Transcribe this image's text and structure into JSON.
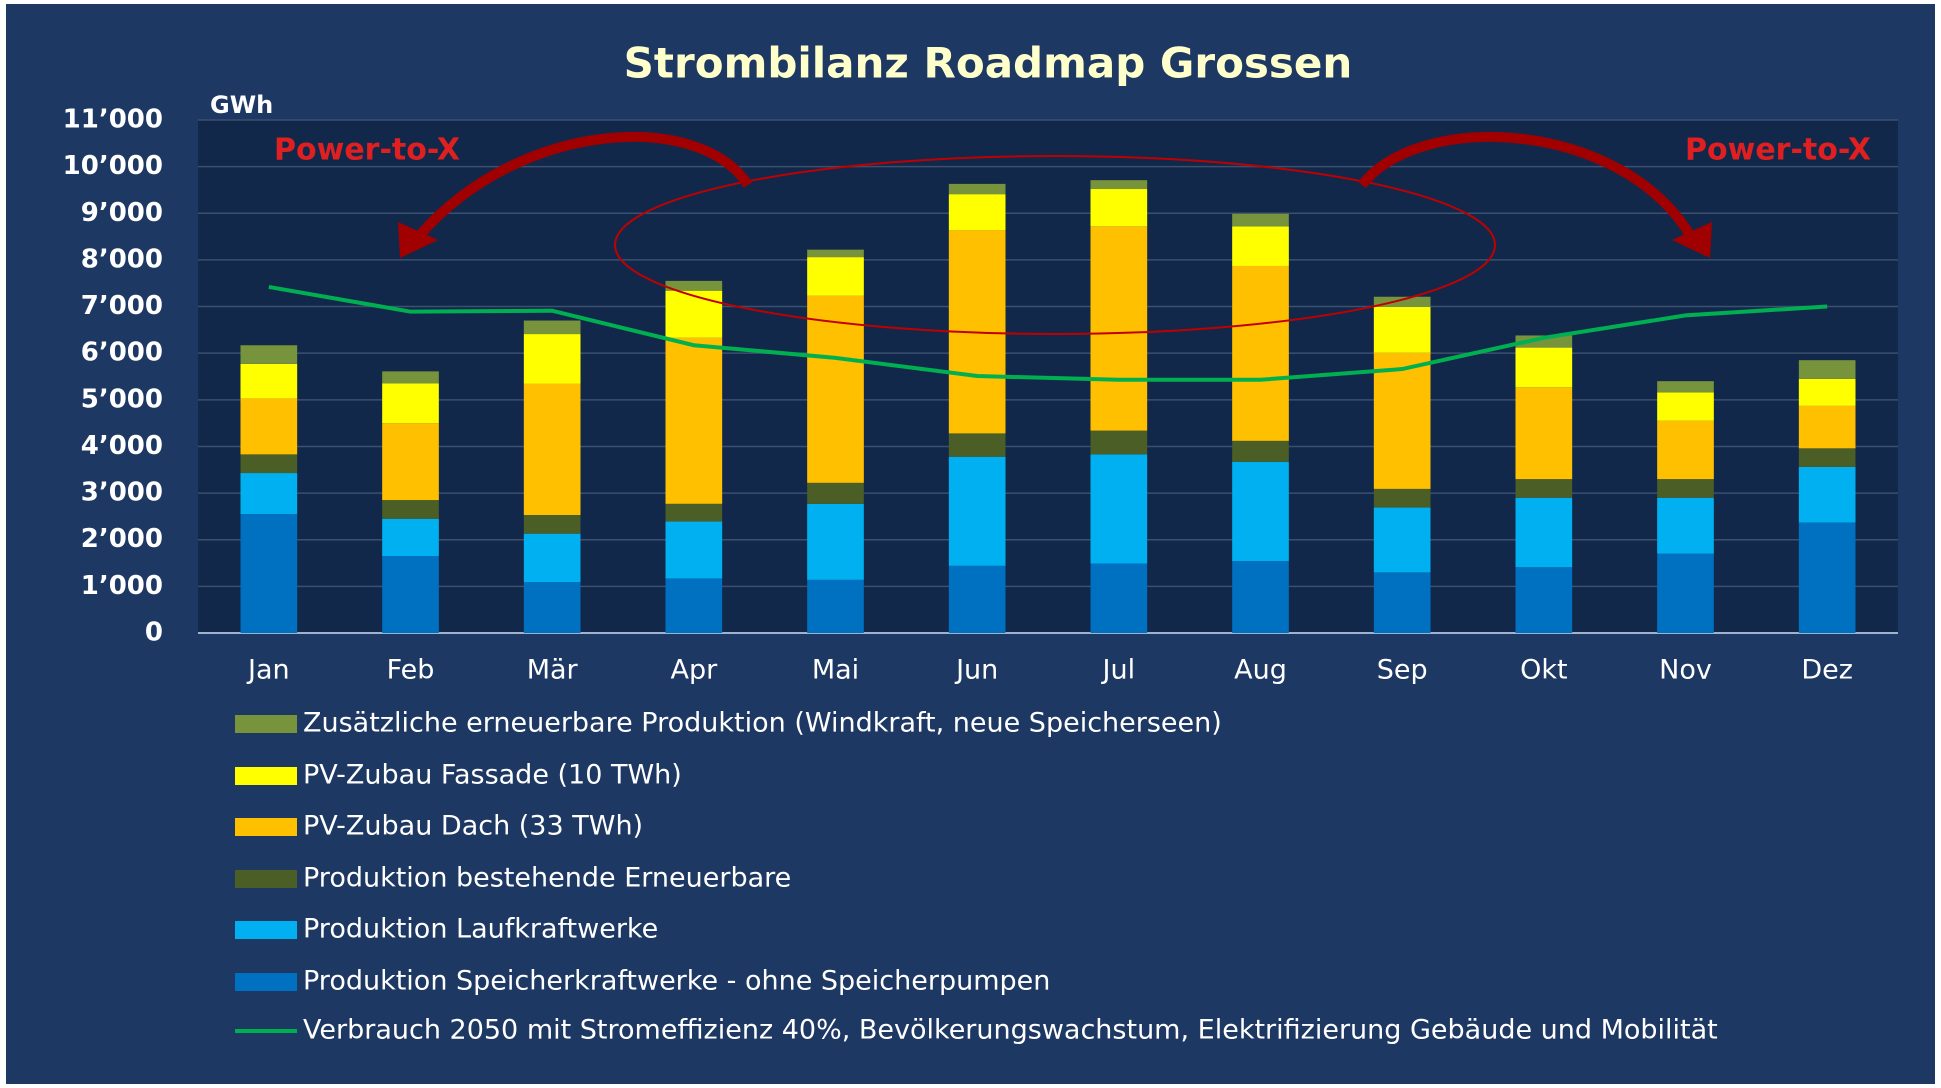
{
  "chart_data": {
    "type": "bar",
    "stacked": true,
    "title": "Strombilanz Roadmap Grossen",
    "y_unit": "GWh",
    "annotations": [
      "Power-to-X",
      "Power-to-X"
    ],
    "categories": [
      "Jan",
      "Feb",
      "Mär",
      "Apr",
      "Mai",
      "Jun",
      "Jul",
      "Aug",
      "Sep",
      "Okt",
      "Nov",
      "Dez"
    ],
    "series": [
      {
        "name": "Produktion Speicherkraftwerke - ohne Speicherpumpen",
        "color": "#0070c0",
        "values": [
          2550,
          1650,
          1090,
          1170,
          1140,
          1440,
          1490,
          1540,
          1300,
          1410,
          1700,
          2370
        ]
      },
      {
        "name": "Produktion Laufkraftwerke",
        "color": "#00b0f0",
        "values": [
          880,
          800,
          1040,
          1220,
          1630,
          2340,
          2340,
          2130,
          1390,
          1490,
          1200,
          1190
        ]
      },
      {
        "name": "Produktion bestehende Erneuerbare",
        "color": "#4a5e26",
        "values": [
          400,
          400,
          400,
          380,
          450,
          500,
          510,
          450,
          400,
          400,
          400,
          400
        ]
      },
      {
        "name": "PV-Zubau Dach (33 TWh)",
        "color": "#ffc000",
        "values": [
          1200,
          1650,
          2820,
          3560,
          4010,
          4360,
          4380,
          3750,
          2920,
          1970,
          1250,
          910
        ]
      },
      {
        "name": "PV-Zubau Fassade (10 TWh)",
        "color": "#ffff00",
        "values": [
          740,
          850,
          1060,
          1010,
          830,
          770,
          800,
          850,
          980,
          850,
          610,
          580
        ]
      },
      {
        "name": "Zusätzliche erneuerbare Produktion (Windkraft, neue Speicherseen)",
        "color": "#77933c",
        "values": [
          400,
          260,
          290,
          210,
          160,
          220,
          190,
          270,
          220,
          260,
          240,
          400
        ]
      }
    ],
    "line": {
      "name": "Verbrauch 2050 mit Stromeffizienz 40%, Bevölkerungswachstum, Elektrifizierung Gebäude und Mobilität",
      "color": "#00b050",
      "values": [
        7420,
        6890,
        6910,
        6170,
        5900,
        5510,
        5430,
        5430,
        5660,
        6330,
        6810,
        7000
      ]
    },
    "ylim": [
      0,
      11000
    ],
    "yticks": [
      0,
      {
        "value": 1000,
        "label": "1’000"
      },
      {
        "value": 2000,
        "label": "2’000"
      },
      {
        "value": 3000,
        "label": "3’000"
      },
      {
        "value": 4000,
        "label": "4’000"
      },
      {
        "value": 5000,
        "label": "5’000"
      },
      {
        "value": 6000,
        "label": "6’000"
      },
      {
        "value": 7000,
        "label": "7’000"
      },
      {
        "value": 8000,
        "label": "8’000"
      },
      {
        "value": 9000,
        "label": "9’000"
      },
      {
        "value": 10000,
        "label": "10’000"
      },
      {
        "value": 11000,
        "label": "11’000"
      }
    ],
    "grid": true
  }
}
